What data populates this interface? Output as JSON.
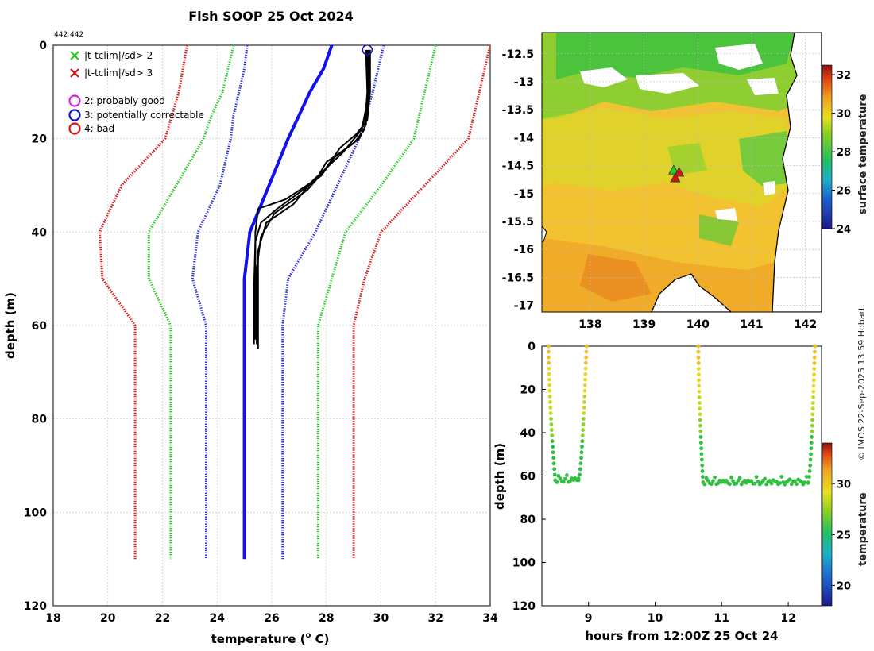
{
  "chart_data": [
    {
      "id": "profile",
      "type": "line",
      "title": "Fish SOOP 25 Oct 2024",
      "id_text": "442 442",
      "xlabel": "temperature (",
      "xlabel_sup": "o",
      "xlabel_end": " C)",
      "ylabel": "depth (m)",
      "xlim": [
        18,
        34
      ],
      "ylim": [
        0,
        120
      ],
      "y_reversed": true,
      "grid": true,
      "xticks": [
        18,
        20,
        22,
        24,
        26,
        28,
        30,
        32,
        34
      ],
      "yticks": [
        0,
        20,
        40,
        60,
        80,
        100,
        120
      ],
      "legend": [
        {
          "symbol": "x",
          "color": "#22cc22",
          "label": "|t-tclim|/sd> 2"
        },
        {
          "symbol": "x",
          "color": "#dd1111",
          "label": "|t-tclim|/sd> 3"
        },
        {
          "symbol": "o",
          "color": "#dd22dd",
          "label": "2: probably good"
        },
        {
          "symbol": "o",
          "color": "#1111cc",
          "label": "3: potentially correctable"
        },
        {
          "symbol": "o",
          "color": "#dd1111",
          "label": "4: bad"
        }
      ],
      "series": [
        {
          "name": "climatology mean",
          "color": "#1111ee",
          "style": "solid",
          "points": [
            [
              28.2,
              0
            ],
            [
              27.9,
              5
            ],
            [
              27.4,
              10
            ],
            [
              27.0,
              15
            ],
            [
              26.6,
              20
            ],
            [
              25.9,
              30
            ],
            [
              25.2,
              40
            ],
            [
              25.0,
              50
            ],
            [
              25.0,
              60
            ],
            [
              25.0,
              110
            ]
          ]
        },
        {
          "name": "mean - 2sd",
          "color": "#3333dd",
          "style": "dotted",
          "points": [
            [
              25.1,
              0
            ],
            [
              25.0,
              5
            ],
            [
              24.8,
              10
            ],
            [
              24.6,
              15
            ],
            [
              24.5,
              20
            ],
            [
              24.1,
              30
            ],
            [
              23.3,
              40
            ],
            [
              23.1,
              50
            ],
            [
              23.6,
              60
            ],
            [
              23.6,
              110
            ]
          ]
        },
        {
          "name": "mean + 2sd",
          "color": "#3333dd",
          "style": "dotted",
          "points": [
            [
              30.1,
              0
            ],
            [
              29.7,
              10
            ],
            [
              29.2,
              20
            ],
            [
              28.4,
              30
            ],
            [
              27.6,
              40
            ],
            [
              26.6,
              50
            ],
            [
              26.4,
              60
            ],
            [
              26.4,
              110
            ]
          ]
        },
        {
          "name": "mean - 3sd",
          "color": "#33cc33",
          "style": "dotted",
          "points": [
            [
              24.6,
              0
            ],
            [
              24.4,
              5
            ],
            [
              24.2,
              10
            ],
            [
              23.8,
              15
            ],
            [
              23.5,
              20
            ],
            [
              22.5,
              30
            ],
            [
              21.5,
              40
            ],
            [
              21.5,
              50
            ],
            [
              22.3,
              60
            ],
            [
              22.3,
              110
            ]
          ]
        },
        {
          "name": "mean + 3sd",
          "color": "#33cc33",
          "style": "dotted",
          "points": [
            [
              32.0,
              0
            ],
            [
              31.6,
              10
            ],
            [
              31.2,
              20
            ],
            [
              30.0,
              30
            ],
            [
              28.7,
              40
            ],
            [
              28.2,
              50
            ],
            [
              27.7,
              60
            ],
            [
              27.7,
              110
            ]
          ]
        },
        {
          "name": "mean - 4sd",
          "color": "#dd2222",
          "style": "dotted",
          "points": [
            [
              22.9,
              0
            ],
            [
              22.6,
              10
            ],
            [
              22.1,
              20
            ],
            [
              20.5,
              30
            ],
            [
              19.7,
              40
            ],
            [
              19.8,
              50
            ],
            [
              21.0,
              60
            ],
            [
              21.0,
              110
            ]
          ]
        },
        {
          "name": "mean + 4sd",
          "color": "#dd2222",
          "style": "dotted",
          "points": [
            [
              34.0,
              0
            ],
            [
              33.6,
              10
            ],
            [
              33.2,
              20
            ],
            [
              31.6,
              30
            ],
            [
              30.0,
              40
            ],
            [
              29.4,
              50
            ],
            [
              29.0,
              60
            ],
            [
              29.0,
              110
            ]
          ]
        },
        {
          "name": "cast 1",
          "color": "#000000",
          "style": "solid",
          "points": [
            [
              29.5,
              1
            ],
            [
              29.55,
              10
            ],
            [
              29.45,
              17
            ],
            [
              29.2,
              20
            ],
            [
              28.3,
              24
            ],
            [
              27.8,
              28
            ],
            [
              26.5,
              33
            ],
            [
              25.5,
              35
            ],
            [
              25.4,
              40
            ],
            [
              25.4,
              50
            ],
            [
              25.4,
              63
            ]
          ]
        },
        {
          "name": "cast 2",
          "color": "#000000",
          "style": "solid",
          "points": [
            [
              29.45,
              1
            ],
            [
              29.5,
              10
            ],
            [
              29.4,
              18
            ],
            [
              29.0,
              21
            ],
            [
              28.0,
              25
            ],
            [
              27.6,
              29
            ],
            [
              26.2,
              35
            ],
            [
              25.6,
              38
            ],
            [
              25.4,
              42
            ],
            [
              25.35,
              52
            ],
            [
              25.35,
              64
            ]
          ]
        },
        {
          "name": "cast 3",
          "color": "#000000",
          "style": "solid",
          "points": [
            [
              29.6,
              1
            ],
            [
              29.6,
              10
            ],
            [
              29.5,
              16
            ],
            [
              29.1,
              19
            ],
            [
              28.5,
              22
            ],
            [
              27.9,
              27
            ],
            [
              27.3,
              31
            ],
            [
              26.1,
              36
            ],
            [
              25.6,
              41
            ],
            [
              25.45,
              48
            ],
            [
              25.45,
              64
            ]
          ]
        },
        {
          "name": "cast 4",
          "color": "#000000",
          "style": "solid",
          "points": [
            [
              29.55,
              1
            ],
            [
              29.5,
              12
            ],
            [
              29.3,
              18
            ],
            [
              28.6,
              23
            ],
            [
              27.5,
              29
            ],
            [
              26.8,
              34
            ],
            [
              25.8,
              38
            ],
            [
              25.5,
              44
            ],
            [
              25.5,
              55
            ],
            [
              25.5,
              65
            ]
          ]
        }
      ],
      "flag_marker": {
        "x": 29.5,
        "y": 1,
        "color": "#1111cc"
      }
    },
    {
      "id": "map",
      "type": "heatmap",
      "xlim": [
        137.1,
        142.3
      ],
      "ylim": [
        -17.12,
        -12.12
      ],
      "xticks": [
        138,
        139,
        140,
        141,
        142
      ],
      "xticklabels": [
        "138",
        "139",
        "140",
        "141",
        "142"
      ],
      "yticks": [
        -12.5,
        -13,
        -13.5,
        -14,
        -14.5,
        -15,
        -15.5,
        -16,
        -16.5,
        -17
      ],
      "yticklabels": [
        "-12.5",
        "-13",
        "-13.5",
        "-14",
        "-14.5",
        "-15",
        "-15.5",
        "-16",
        "-16.5",
        "-17"
      ],
      "colorbar_label": "surface temperature",
      "colorbar_range": [
        24,
        32.5
      ],
      "colorbar_ticks": [
        24,
        26,
        28,
        30,
        32
      ],
      "colorbar_ticklabels": [
        "24",
        "26",
        "28",
        "30",
        "32"
      ],
      "markers": [
        {
          "lon": 139.55,
          "lat": -14.58,
          "color": "#22cc22"
        },
        {
          "lon": 139.65,
          "lat": -14.62,
          "color": "#dd1111"
        },
        {
          "lon": 139.58,
          "lat": -14.72,
          "color": "#dd1111"
        }
      ]
    },
    {
      "id": "timeseries",
      "type": "scatter",
      "xlabel": "hours from 12:00Z 25 Oct 24",
      "ylabel": "depth (m)",
      "xlim": [
        8.3,
        12.5
      ],
      "ylim": [
        0,
        120
      ],
      "y_reversed": true,
      "xticks": [
        9,
        10,
        11,
        12
      ],
      "xticklabels": [
        "9",
        "10",
        "11",
        "12"
      ],
      "yticks": [
        0,
        20,
        40,
        60,
        80,
        100,
        120
      ],
      "yticklabels": [
        "0",
        "20",
        "40",
        "60",
        "80",
        "100",
        "120"
      ],
      "colorbar_label": "temperature",
      "colorbar_range": [
        18,
        34
      ],
      "colorbar_ticks": [
        20,
        25,
        30
      ],
      "colorbar_ticklabels": [
        "20",
        "25",
        "30"
      ],
      "tows": [
        {
          "t_down": [
            8.4,
            8.5
          ],
          "t_bottom": [
            8.5,
            8.85
          ],
          "t_up": [
            8.85,
            8.97
          ],
          "bottom_depth": 62
        },
        {
          "t_down": [
            10.65,
            10.72
          ],
          "t_bottom": [
            10.72,
            12.3
          ],
          "t_up": [
            12.3,
            12.4
          ],
          "bottom_depth": 63
        }
      ]
    }
  ],
  "footer": {
    "credit": "© IMOS 22-Sep-2025 13:59 Hobart"
  }
}
